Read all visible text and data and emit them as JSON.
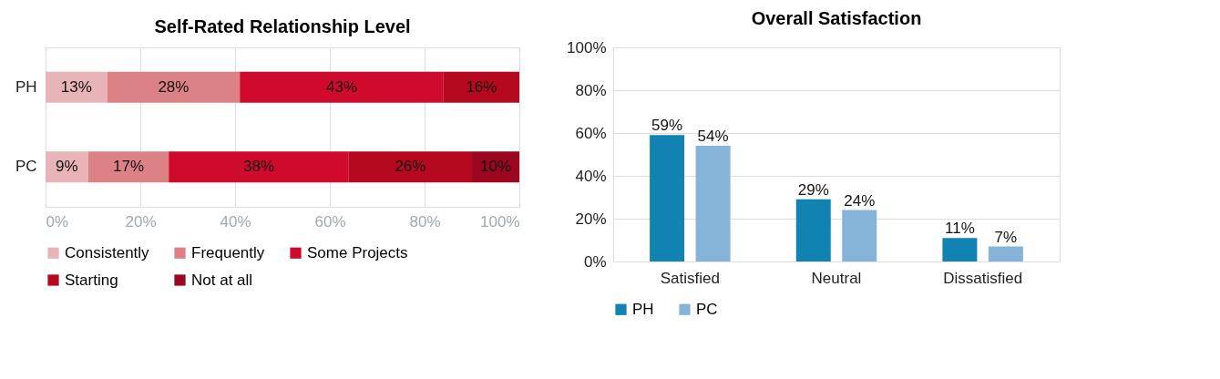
{
  "chart_data": [
    {
      "type": "bar",
      "title": "Self-Rated Relationship Level",
      "orientation": "horizontal",
      "stacked": true,
      "categories": [
        "PH",
        "PC"
      ],
      "series": [
        {
          "name": "Consistently",
          "color": "#e8b4b8",
          "values": [
            13,
            9
          ],
          "value_labels": [
            "13%",
            "9%"
          ]
        },
        {
          "name": "Frequently",
          "color": "#dc8287",
          "values": [
            28,
            17
          ],
          "value_labels": [
            "28%",
            "17%"
          ]
        },
        {
          "name": "Some Projects",
          "color": "#cf0a2c",
          "values": [
            43,
            38
          ],
          "value_labels": [
            "43%",
            "38%"
          ]
        },
        {
          "name": "Starting",
          "color": "#b5091f",
          "values": [
            16,
            26
          ],
          "value_labels": [
            "16%",
            "26%"
          ]
        },
        {
          "name": "Not at all",
          "color": "#9b0620",
          "values": [
            null,
            10
          ],
          "value_labels": [
            null,
            "10%"
          ]
        }
      ],
      "xlim": [
        0,
        100
      ],
      "xticks": [
        {
          "value": 0,
          "label": "0%"
        },
        {
          "value": 20,
          "label": "20%"
        },
        {
          "value": 40,
          "label": "40%"
        },
        {
          "value": 60,
          "label": "60%"
        },
        {
          "value": 80,
          "label": "80%"
        },
        {
          "value": 100,
          "label": "100%"
        }
      ],
      "grid": "x",
      "legend": "bottom"
    },
    {
      "type": "bar",
      "title": "Overall Satisfaction",
      "categories": [
        "Satisfied",
        "Neutral",
        "Dissatisfied"
      ],
      "series": [
        {
          "name": "PH",
          "color": "#1083b3",
          "values": [
            59,
            29,
            11
          ],
          "value_labels": [
            "59%",
            "29%",
            "11%"
          ]
        },
        {
          "name": "PC",
          "color": "#85b4d8",
          "values": [
            54,
            24,
            7
          ],
          "value_labels": [
            "54%",
            "24%",
            "7%"
          ]
        }
      ],
      "ylim": [
        0,
        100
      ],
      "yticks": [
        {
          "value": 0,
          "label": "0%"
        },
        {
          "value": 20,
          "label": "20%"
        },
        {
          "value": 40,
          "label": "40%"
        },
        {
          "value": 60,
          "label": "60%"
        },
        {
          "value": 80,
          "label": "80%"
        },
        {
          "value": 100,
          "label": "100%"
        }
      ],
      "grid": "y",
      "legend": "bottom"
    }
  ]
}
